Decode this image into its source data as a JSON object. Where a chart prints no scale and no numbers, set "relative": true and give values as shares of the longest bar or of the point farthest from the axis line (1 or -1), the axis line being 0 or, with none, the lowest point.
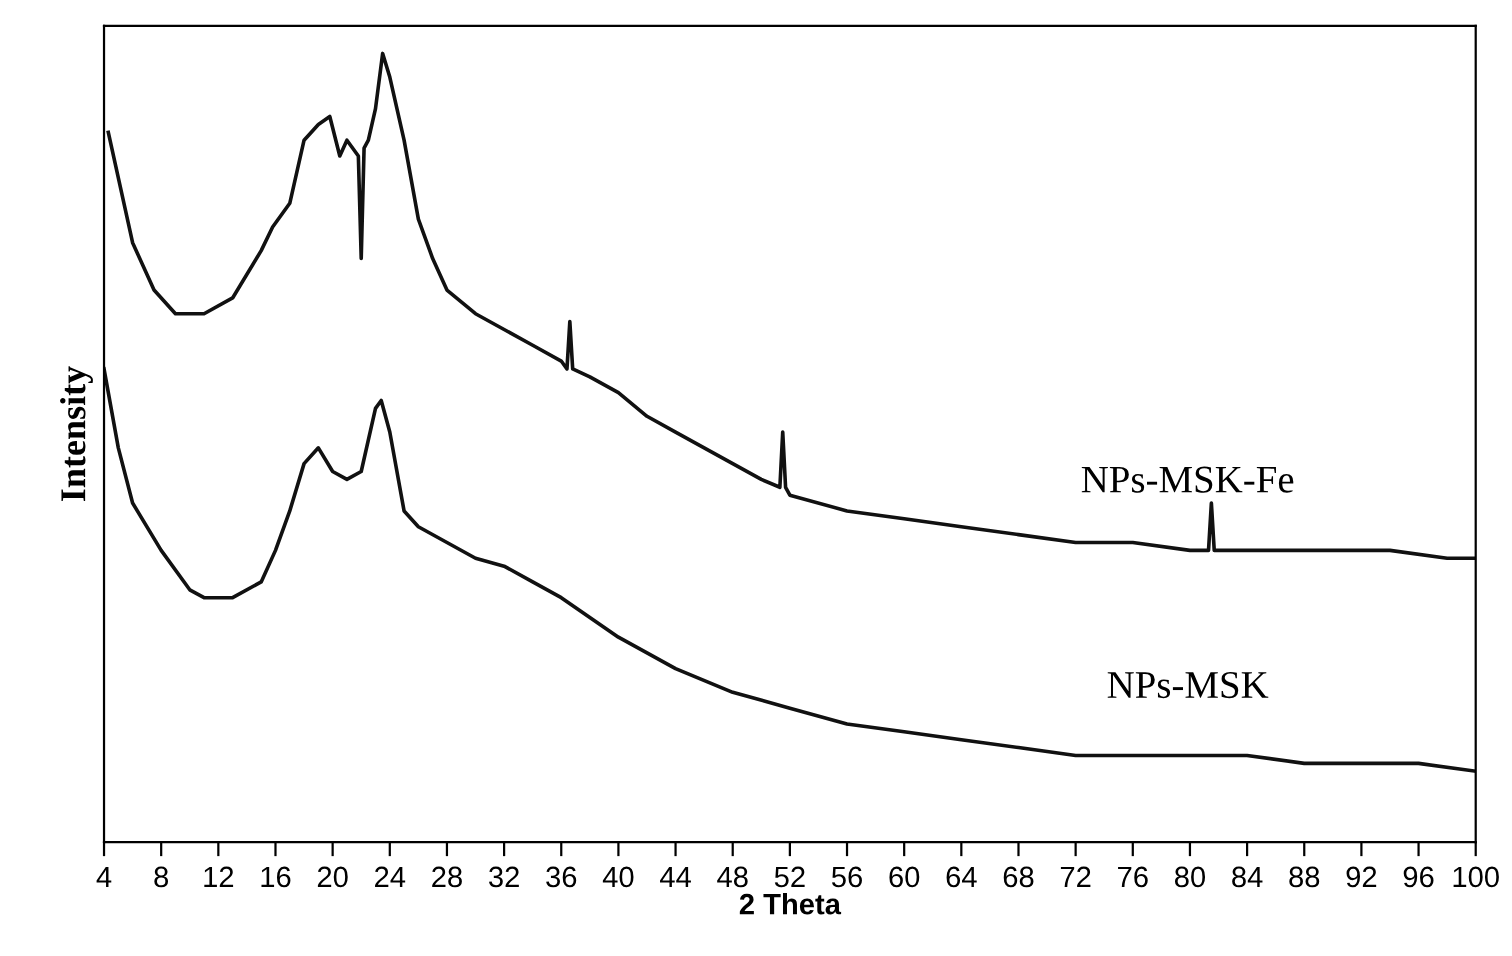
{
  "chart_data": {
    "type": "line",
    "relative": true,
    "xlabel": "2 Theta",
    "ylabel": "Intensity",
    "xlim": [
      4,
      100
    ],
    "xticks": [
      4,
      8,
      12,
      16,
      20,
      24,
      28,
      32,
      36,
      40,
      44,
      48,
      52,
      56,
      60,
      64,
      68,
      72,
      76,
      80,
      84,
      88,
      92,
      96,
      100
    ],
    "grid": false,
    "legend": false,
    "marker": "none",
    "line_style": "solid",
    "tick_labels": "x",
    "series": [
      {
        "name": "NPs-MSK-Fe",
        "color": "#111111",
        "x": [
          4.3,
          6,
          7.5,
          9,
          11,
          13,
          15,
          15.8,
          17,
          18,
          19,
          19.8,
          20.5,
          21,
          21.8,
          22,
          22.2,
          22.5,
          23,
          23.5,
          24,
          25,
          26,
          27,
          28,
          30,
          32,
          34,
          36,
          36.4,
          36.6,
          36.8,
          38,
          40,
          42,
          44,
          46,
          48,
          50,
          51.3,
          51.5,
          51.7,
          52,
          56,
          60,
          64,
          68,
          72,
          76,
          80,
          81.3,
          81.5,
          81.7,
          82,
          86,
          90,
          94,
          98,
          100
        ],
        "values": [
          0.9,
          0.76,
          0.7,
          0.67,
          0.67,
          0.69,
          0.75,
          0.78,
          0.81,
          0.89,
          0.91,
          0.92,
          0.87,
          0.89,
          0.87,
          0.74,
          0.88,
          0.89,
          0.93,
          1.0,
          0.97,
          0.89,
          0.79,
          0.74,
          0.7,
          0.67,
          0.65,
          0.63,
          0.61,
          0.6,
          0.66,
          0.6,
          0.59,
          0.57,
          0.54,
          0.52,
          0.5,
          0.48,
          0.46,
          0.45,
          0.52,
          0.45,
          0.44,
          0.42,
          0.41,
          0.4,
          0.39,
          0.38,
          0.38,
          0.37,
          0.37,
          0.43,
          0.37,
          0.37,
          0.37,
          0.37,
          0.37,
          0.36,
          0.36
        ]
      },
      {
        "name": "NPs-MSK",
        "color": "#111111",
        "x": [
          4,
          5,
          6,
          8,
          10,
          11,
          13,
          15,
          16,
          17,
          18,
          19,
          20,
          21,
          22,
          23,
          23.4,
          24,
          25,
          26,
          28,
          30,
          32,
          34,
          36,
          40,
          44,
          48,
          52,
          56,
          60,
          64,
          68,
          72,
          76,
          80,
          84,
          88,
          92,
          96,
          100
        ],
        "values": [
          0.6,
          0.5,
          0.43,
          0.37,
          0.32,
          0.31,
          0.31,
          0.33,
          0.37,
          0.42,
          0.48,
          0.5,
          0.47,
          0.46,
          0.47,
          0.55,
          0.56,
          0.52,
          0.42,
          0.4,
          0.38,
          0.36,
          0.35,
          0.33,
          0.31,
          0.26,
          0.22,
          0.19,
          0.17,
          0.15,
          0.14,
          0.13,
          0.12,
          0.11,
          0.11,
          0.11,
          0.11,
          0.1,
          0.1,
          0.1,
          0.09
        ]
      }
    ]
  }
}
